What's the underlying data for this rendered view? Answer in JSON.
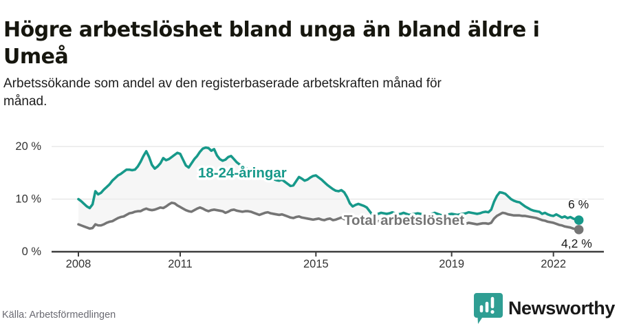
{
  "header": {
    "title_lines": [
      "Högre arbetslöshet bland unga än bland äldre i",
      "Umeå"
    ],
    "subtitle_lines": [
      "Arbetssökande som andel av den registerbaserade arbetskraften månad för",
      "månad."
    ]
  },
  "footer": {
    "source": "Källa: Arbetsförmedlingen",
    "brand": "Newsworthy"
  },
  "colors": {
    "accent": "#17998a",
    "total_gray": "#757575",
    "grid": "#e4e4e4",
    "axis": "#3d3d3d",
    "brand_teal": "#2f9e93",
    "gap_fill": "#efefef"
  },
  "chart_data": {
    "type": "line",
    "title": "Högre arbetslöshet bland unga än bland äldre i Umeå",
    "subtitle": "Arbetssökande som andel av den registerbaserade arbetskraften månad för månad.",
    "frequency": "monthly",
    "x_start": "2008-01",
    "x_end": "2022-10",
    "x_ticks": [
      2008,
      2011,
      2015,
      2019,
      2022
    ],
    "x_tick_labels": [
      "2008",
      "2011",
      "2015",
      "2019",
      "2022"
    ],
    "y_ticks": [
      0,
      10,
      20
    ],
    "y_tick_labels": [
      "0 %",
      "10 %",
      "20 %"
    ],
    "ylim": [
      0,
      22
    ],
    "grid": "horizontal-only",
    "legend_position": "inline-labels",
    "series": [
      {
        "name": "18-24-åringar",
        "color": "#17998a",
        "end_label": "6 %",
        "end_value": 6.0,
        "values": [
          10.0,
          9.6,
          9.1,
          8.6,
          8.3,
          9.0,
          11.5,
          10.9,
          11.2,
          11.8,
          12.3,
          12.8,
          13.5,
          14.0,
          14.5,
          14.8,
          15.2,
          15.6,
          15.6,
          15.5,
          15.6,
          16.2,
          17.1,
          18.2,
          19.1,
          18.0,
          16.5,
          15.8,
          16.2,
          16.8,
          17.8,
          17.4,
          17.6,
          18.0,
          18.4,
          18.8,
          18.6,
          17.5,
          16.4,
          16.0,
          16.8,
          17.6,
          18.2,
          19.0,
          19.6,
          19.8,
          19.7,
          19.2,
          19.5,
          18.3,
          17.6,
          17.3,
          17.5,
          18.0,
          18.2,
          17.6,
          17.0,
          16.6,
          16.3,
          16.0,
          15.7,
          15.3,
          14.9,
          14.5,
          14.2,
          14.6,
          15.0,
          14.6,
          14.1,
          13.8,
          13.6,
          13.5,
          13.7,
          13.3,
          12.9,
          12.5,
          12.6,
          13.4,
          14.2,
          13.9,
          13.5,
          13.7,
          14.1,
          14.4,
          14.5,
          14.1,
          13.7,
          13.2,
          12.7,
          12.3,
          11.9,
          11.6,
          11.5,
          11.7,
          11.3,
          10.4,
          9.2,
          8.6,
          8.9,
          9.1,
          8.9,
          8.7,
          8.4,
          7.7,
          7.0,
          6.9,
          7.2,
          7.4,
          7.3,
          7.2,
          7.3,
          7.5,
          7.3,
          7.1,
          7.2,
          7.4,
          7.2,
          7.0,
          7.1,
          7.2,
          7.3,
          7.2,
          7.0,
          6.9,
          7.0,
          7.2,
          7.4,
          7.2,
          7.0,
          6.9,
          7.0,
          7.1,
          7.2,
          7.1,
          7.0,
          7.1,
          7.2,
          7.3,
          7.5,
          7.4,
          7.3,
          7.2,
          7.3,
          7.5,
          7.6,
          7.5,
          8.0,
          9.5,
          10.6,
          11.3,
          11.2,
          11.0,
          10.5,
          10.0,
          9.7,
          9.5,
          9.4,
          9.0,
          8.6,
          8.3,
          8.0,
          7.8,
          7.7,
          7.6,
          7.2,
          7.4,
          7.1,
          6.9,
          6.8,
          7.1,
          6.8,
          6.5,
          6.7,
          6.4,
          6.6,
          6.3,
          6.1,
          6.0
        ]
      },
      {
        "name": "Total arbetslöshet",
        "color": "#757575",
        "end_label": "4,2 %",
        "end_value": 4.2,
        "values": [
          5.2,
          5.0,
          4.8,
          4.6,
          4.4,
          4.5,
          5.2,
          5.0,
          5.0,
          5.2,
          5.5,
          5.7,
          5.8,
          6.1,
          6.4,
          6.6,
          6.7,
          7.0,
          7.3,
          7.4,
          7.6,
          7.7,
          7.7,
          8.0,
          8.2,
          8.0,
          7.9,
          8.0,
          8.2,
          8.4,
          8.3,
          8.6,
          9.0,
          9.3,
          9.2,
          8.8,
          8.5,
          8.2,
          7.9,
          7.7,
          7.6,
          7.9,
          8.2,
          8.4,
          8.2,
          7.9,
          7.7,
          7.9,
          8.0,
          7.9,
          7.8,
          7.7,
          7.4,
          7.6,
          7.9,
          8.0,
          7.8,
          7.7,
          7.6,
          7.7,
          7.7,
          7.6,
          7.4,
          7.2,
          7.0,
          7.2,
          7.4,
          7.5,
          7.3,
          7.2,
          7.1,
          7.0,
          7.1,
          6.9,
          6.7,
          6.5,
          6.4,
          6.6,
          6.7,
          6.5,
          6.4,
          6.3,
          6.2,
          6.1,
          6.2,
          6.3,
          6.1,
          6.0,
          6.2,
          6.3,
          6.0,
          6.1,
          6.3,
          6.5,
          6.2,
          6.0,
          6.1,
          6.2,
          6.0,
          5.9,
          6.0,
          6.1,
          6.3,
          6.2,
          6.0,
          5.9,
          5.8,
          5.9,
          6.0,
          6.1,
          6.0,
          5.9,
          5.8,
          5.9,
          6.0,
          6.1,
          5.9,
          5.8,
          5.7,
          5.8,
          5.8,
          5.7,
          5.6,
          5.5,
          5.4,
          5.5,
          5.6,
          5.5,
          5.4,
          5.3,
          5.2,
          5.3,
          5.4,
          5.3,
          5.2,
          5.2,
          5.1,
          5.3,
          5.5,
          5.4,
          5.3,
          5.2,
          5.3,
          5.4,
          5.4,
          5.3,
          5.5,
          6.3,
          6.8,
          7.1,
          7.4,
          7.3,
          7.1,
          7.0,
          6.9,
          6.9,
          6.9,
          6.8,
          6.8,
          6.7,
          6.6,
          6.5,
          6.4,
          6.2,
          6.0,
          5.9,
          5.7,
          5.6,
          5.5,
          5.3,
          5.1,
          5.0,
          4.8,
          4.7,
          4.6,
          4.4,
          4.3,
          4.2
        ]
      }
    ]
  }
}
